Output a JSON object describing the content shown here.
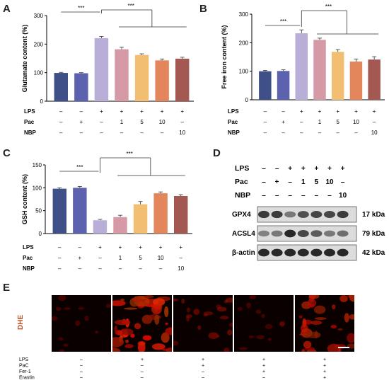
{
  "panels": {
    "a": "A",
    "b": "B",
    "c": "C",
    "d": "D",
    "e": "E"
  },
  "colors": [
    "#3f4f87",
    "#5c62ad",
    "#b8aed8",
    "#d59aa6",
    "#f2be72",
    "#e4865c",
    "#a45852"
  ],
  "sig_label": "***",
  "treatment_rows": [
    {
      "label": "LPS",
      "values": [
        "–",
        "–",
        "+",
        "+",
        "+",
        "+",
        "+"
      ]
    },
    {
      "label": "Pac",
      "values": [
        "–",
        "+",
        "–",
        "1",
        "5",
        "10",
        "–"
      ]
    },
    {
      "label": "NBP",
      "values": [
        "–",
        "–",
        "–",
        "–",
        "–",
        "–",
        "10"
      ]
    }
  ],
  "chart_data": [
    {
      "panel": "A",
      "type": "bar",
      "ylabel": "Glutamate content (%)",
      "ylim": [
        0,
        300
      ],
      "yticks": [
        0,
        100,
        200,
        300
      ],
      "values": [
        99,
        98,
        221,
        182,
        162,
        143,
        149
      ],
      "errors": [
        2,
        2,
        6,
        7,
        4,
        5,
        5
      ]
    },
    {
      "panel": "B",
      "type": "bar",
      "ylabel": "Free iron content (%)",
      "ylim": [
        0,
        300
      ],
      "yticks": [
        0,
        100,
        200,
        300
      ],
      "values": [
        100,
        101,
        233,
        210,
        168,
        134,
        141
      ],
      "errors": [
        3,
        4,
        12,
        6,
        8,
        9,
        10
      ]
    },
    {
      "panel": "C",
      "type": "bar",
      "ylabel": "GSH content (%)",
      "ylim": [
        0,
        150
      ],
      "yticks": [
        0,
        50,
        100,
        150
      ],
      "values": [
        98,
        100,
        29,
        36,
        64,
        88,
        82
      ],
      "errors": [
        2,
        3,
        2,
        4,
        6,
        3,
        3
      ]
    }
  ],
  "western": {
    "conditions": [
      {
        "label": "LPS",
        "values": [
          "–",
          "–",
          "+",
          "+",
          "+",
          "+",
          "+"
        ]
      },
      {
        "label": "Pac",
        "values": [
          "–",
          "+",
          "–",
          "1",
          "5",
          "10",
          "–"
        ]
      },
      {
        "label": "NBP",
        "values": [
          "–",
          "–",
          "–",
          "–",
          "–",
          "–",
          "10"
        ]
      }
    ],
    "proteins": [
      {
        "name": "GPX4",
        "kda": "17 kDa",
        "intensity": [
          0.85,
          0.85,
          0.55,
          0.75,
          0.8,
          0.8,
          0.85
        ]
      },
      {
        "name": "ACSL4",
        "kda": "79 kDa",
        "intensity": [
          0.5,
          0.55,
          0.95,
          0.8,
          0.7,
          0.55,
          0.6
        ]
      },
      {
        "name": "β-actin",
        "kda": "42 kDa",
        "intensity": [
          0.95,
          0.95,
          0.95,
          0.95,
          0.95,
          0.95,
          0.95
        ]
      }
    ]
  },
  "microscopy": {
    "stain": "DHE",
    "conditions": [
      {
        "label": "LPS",
        "values": [
          "–",
          "+",
          "+",
          "+",
          "+"
        ]
      },
      {
        "label": "PaC",
        "values": [
          "–",
          "–",
          "+",
          "+",
          "+"
        ]
      },
      {
        "label": "Fer-1",
        "values": [
          "–",
          "–",
          "–",
          "+",
          "+"
        ]
      },
      {
        "label": "Erastin",
        "values": [
          "–",
          "–",
          "–",
          "–",
          "+"
        ]
      }
    ],
    "intensity": [
      0.15,
      0.95,
      0.35,
      0.15,
      0.7
    ]
  }
}
